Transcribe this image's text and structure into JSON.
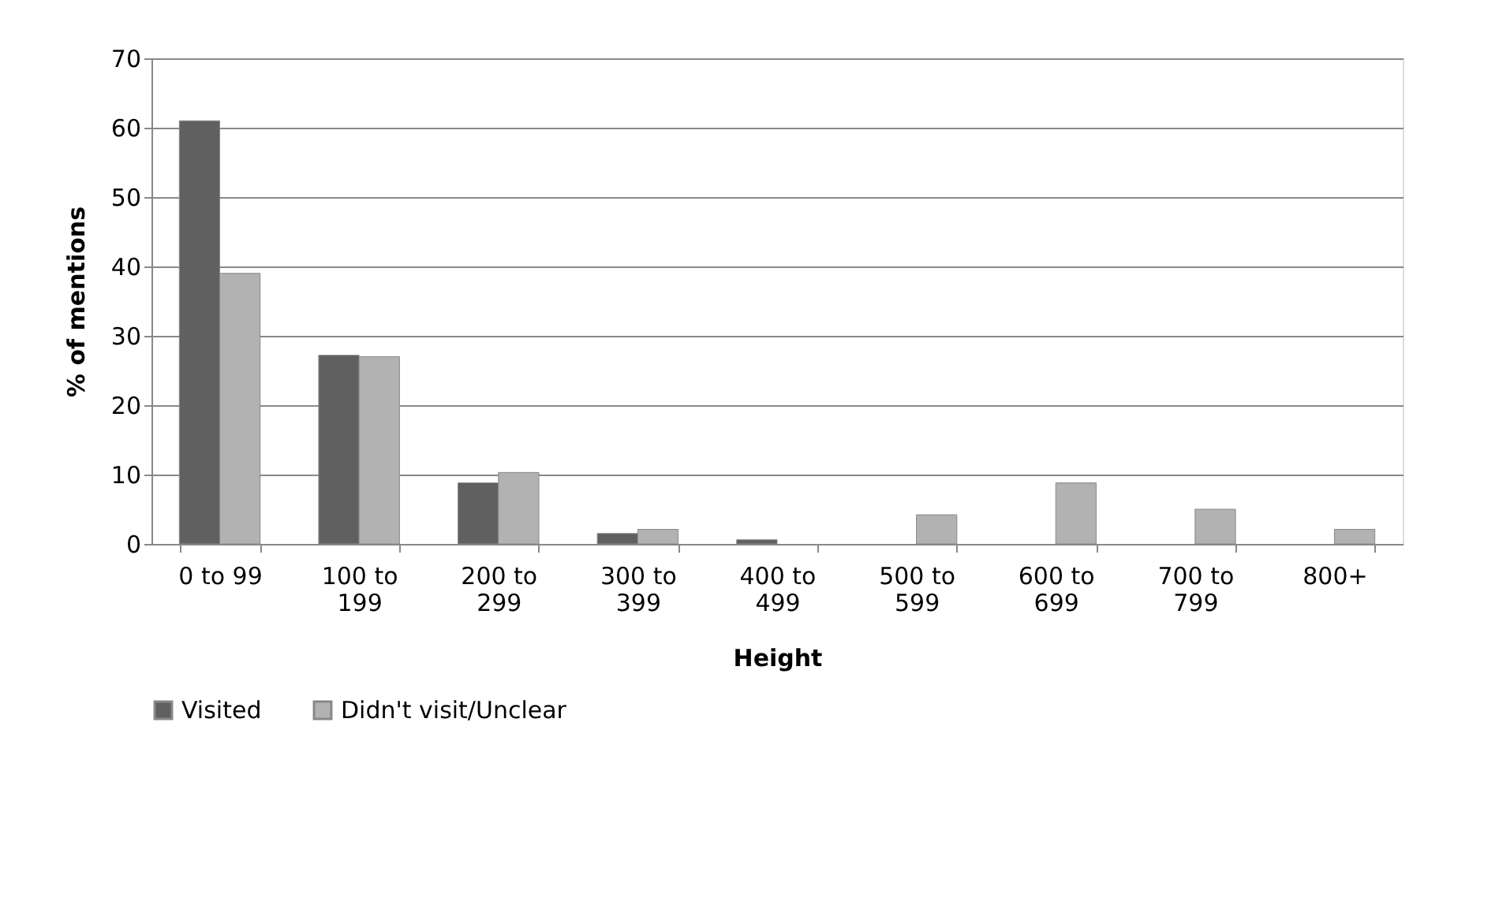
{
  "chart_data": {
    "type": "bar",
    "xlabel": "Height",
    "ylabel": "% of mentions",
    "categories": [
      "0 to 99",
      "100 to 199",
      "200 to 299",
      "300 to 399",
      "400 to 499",
      "500 to 599",
      "600 to 699",
      "700 to 799",
      "800+"
    ],
    "series": [
      {
        "name": "Visited",
        "color": "#606060",
        "values": [
          61.0,
          27.2,
          8.8,
          1.5,
          0.6,
          null,
          null,
          null,
          null
        ]
      },
      {
        "name": "Didn't visit/Unclear",
        "color": "#b2b2b2",
        "values": [
          39.0,
          27.0,
          10.3,
          2.1,
          null,
          4.2,
          8.8,
          5.0,
          2.1
        ]
      }
    ],
    "ylim": [
      0,
      70
    ],
    "yticks": [
      0,
      10,
      20,
      30,
      40,
      50,
      60,
      70
    ],
    "grid": "y",
    "legend": "bottom"
  }
}
